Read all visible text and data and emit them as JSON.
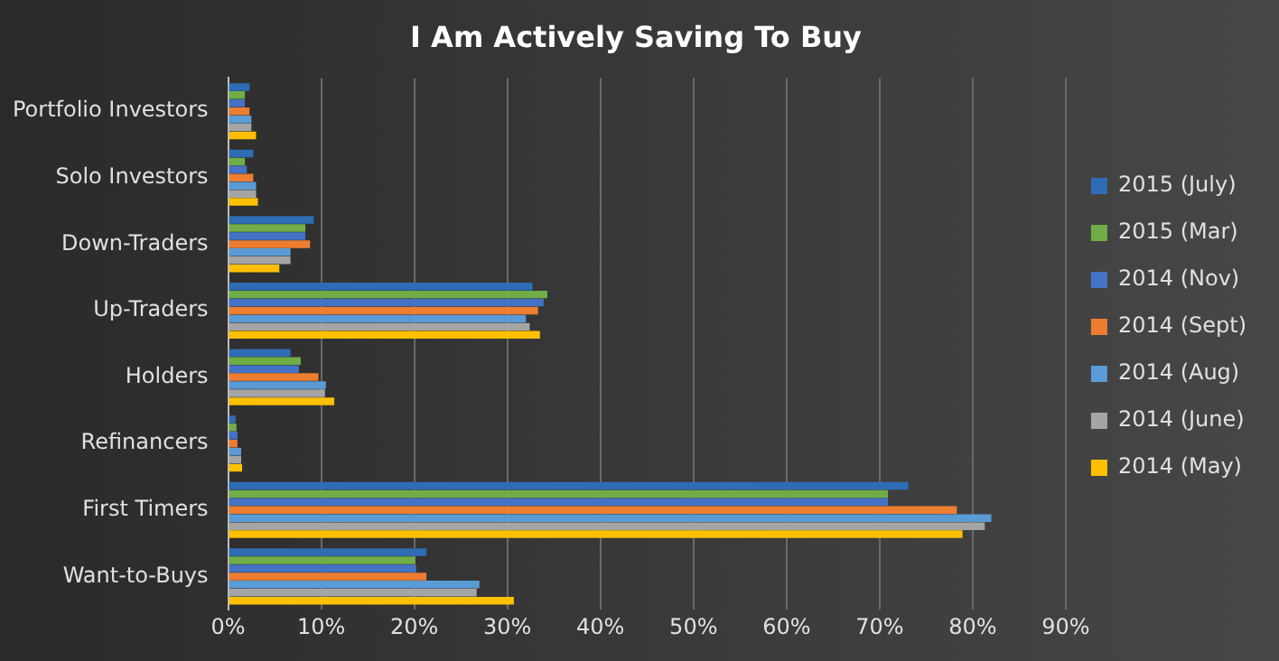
{
  "chart_data": {
    "type": "bar",
    "orientation": "horizontal",
    "title": "I Am Actively Saving To Buy",
    "categories": [
      "Portfolio Investors",
      "Solo Investors",
      "Down-Traders",
      "Up-Traders",
      "Holders",
      "Refinancers",
      "First Timers",
      "Want-to-Buys"
    ],
    "series": [
      {
        "name": "2015 (July)",
        "color": "#2e6db4",
        "values": [
          2.3,
          2.7,
          9.2,
          32.7,
          6.7,
          0.8,
          73.1,
          21.3
        ]
      },
      {
        "name": "2015 (Mar)",
        "color": "#70ad47",
        "values": [
          1.8,
          1.8,
          8.3,
          34.3,
          7.8,
          0.9,
          70.9,
          20.1
        ]
      },
      {
        "name": "2014 (Nov)",
        "color": "#4472c4",
        "values": [
          1.8,
          2.0,
          8.3,
          33.9,
          7.6,
          1.0,
          70.9,
          20.2
        ]
      },
      {
        "name": "2014 (Sept)",
        "color": "#ed7d31",
        "values": [
          2.3,
          2.7,
          8.8,
          33.3,
          9.7,
          1.0,
          78.3,
          21.3
        ]
      },
      {
        "name": "2014 (Aug)",
        "color": "#5b9bd5",
        "values": [
          2.5,
          3.0,
          6.7,
          32.0,
          10.5,
          1.4,
          82.0,
          27.0
        ]
      },
      {
        "name": "2014 (June)",
        "color": "#a5a5a5",
        "values": [
          2.5,
          3.0,
          6.7,
          32.4,
          10.4,
          1.4,
          81.3,
          26.7
        ]
      },
      {
        "name": "2014 (May)",
        "color": "#ffc000",
        "values": [
          3.0,
          3.2,
          5.5,
          33.5,
          11.4,
          1.5,
          78.9,
          30.7
        ]
      }
    ],
    "xlim": [
      0,
      90
    ],
    "xticks": [
      {
        "value": 0,
        "label": "0%"
      },
      {
        "value": 10,
        "label": "10%"
      },
      {
        "value": 20,
        "label": "20%"
      },
      {
        "value": 30,
        "label": "30%"
      },
      {
        "value": 40,
        "label": "40%"
      },
      {
        "value": 50,
        "label": "50%"
      },
      {
        "value": 60,
        "label": "60%"
      },
      {
        "value": 70,
        "label": "70%"
      },
      {
        "value": 80,
        "label": "80%"
      },
      {
        "value": 90,
        "label": "90%"
      }
    ],
    "grid": "x",
    "legend": "right"
  }
}
